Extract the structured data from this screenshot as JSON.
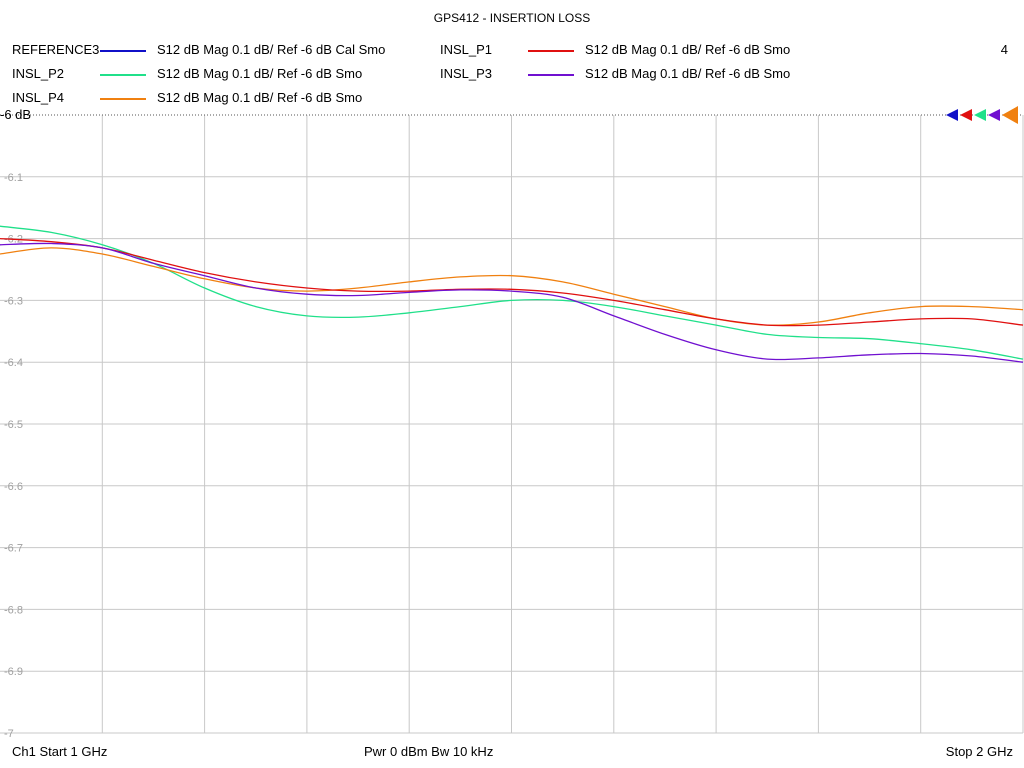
{
  "chart_data": {
    "type": "line",
    "title": "GPS412 - INSERTION LOSS",
    "xlabel": "",
    "ylabel": "",
    "xlim": [
      1,
      2
    ],
    "ylim": [
      -7,
      -6
    ],
    "yticks": [
      -6.1,
      -6.2,
      -6.3,
      -6.4,
      -6.5,
      -6.6,
      -6.7,
      -6.8,
      -6.9,
      -7
    ],
    "ref_level_label": "-6 dB",
    "grid": true,
    "legend_position": "top",
    "series": [
      {
        "name": "REFERENCE3",
        "desc": "S12  dB Mag  0.1 dB/ Ref -6 dB  Cal Smo",
        "color": "#1010c8",
        "x": [],
        "values": []
      },
      {
        "name": "INSL_P2",
        "desc": "S12  dB Mag  0.1 dB/ Ref -6 dB  Smo",
        "color": "#20e08a",
        "x": [
          1.0,
          1.05,
          1.1,
          1.15,
          1.2,
          1.25,
          1.3,
          1.35,
          1.4,
          1.45,
          1.5,
          1.55,
          1.6,
          1.65,
          1.7,
          1.75,
          1.8,
          1.85,
          1.9,
          1.95,
          2.0
        ],
        "values": [
          -6.18,
          -6.19,
          -6.21,
          -6.24,
          -6.28,
          -6.31,
          -6.325,
          -6.327,
          -6.32,
          -6.31,
          -6.3,
          -6.3,
          -6.31,
          -6.325,
          -6.34,
          -6.355,
          -6.36,
          -6.362,
          -6.37,
          -6.38,
          -6.395
        ]
      },
      {
        "name": "INSL_P4",
        "desc": "S12  dB Mag  0.1 dB/ Ref -6 dB  Smo",
        "color": "#f08010",
        "x": [
          1.0,
          1.05,
          1.1,
          1.15,
          1.2,
          1.25,
          1.3,
          1.35,
          1.4,
          1.45,
          1.5,
          1.55,
          1.6,
          1.65,
          1.7,
          1.75,
          1.8,
          1.85,
          1.9,
          1.95,
          2.0
        ],
        "values": [
          -6.225,
          -6.215,
          -6.225,
          -6.245,
          -6.265,
          -6.28,
          -6.285,
          -6.28,
          -6.27,
          -6.262,
          -6.26,
          -6.27,
          -6.29,
          -6.31,
          -6.33,
          -6.34,
          -6.335,
          -6.32,
          -6.31,
          -6.31,
          -6.315
        ]
      },
      {
        "name": "INSL_P1",
        "desc": "S12  dB Mag  0.1 dB/ Ref -6 dB  Smo",
        "color": "#e01010",
        "x": [
          1.0,
          1.05,
          1.1,
          1.15,
          1.2,
          1.25,
          1.3,
          1.35,
          1.4,
          1.45,
          1.5,
          1.55,
          1.6,
          1.65,
          1.7,
          1.75,
          1.8,
          1.85,
          1.9,
          1.95,
          2.0
        ],
        "values": [
          -6.2,
          -6.205,
          -6.215,
          -6.235,
          -6.255,
          -6.27,
          -6.28,
          -6.285,
          -6.285,
          -6.282,
          -6.282,
          -6.288,
          -6.3,
          -6.315,
          -6.33,
          -6.34,
          -6.34,
          -6.335,
          -6.33,
          -6.33,
          -6.34
        ]
      },
      {
        "name": "INSL_P3",
        "desc": "S12  dB Mag  0.1 dB/ Ref -6 dB  Smo",
        "color": "#7010d0",
        "x": [
          1.0,
          1.05,
          1.1,
          1.15,
          1.2,
          1.25,
          1.3,
          1.35,
          1.4,
          1.45,
          1.5,
          1.55,
          1.6,
          1.65,
          1.7,
          1.75,
          1.8,
          1.85,
          1.9,
          1.95,
          2.0
        ],
        "values": [
          -6.21,
          -6.208,
          -6.215,
          -6.24,
          -6.26,
          -6.28,
          -6.29,
          -6.292,
          -6.287,
          -6.283,
          -6.285,
          -6.295,
          -6.325,
          -6.355,
          -6.38,
          -6.395,
          -6.393,
          -6.388,
          -6.386,
          -6.39,
          -6.4
        ]
      }
    ],
    "markers_shown": 4,
    "stimulus": {
      "start": "Ch1  Start  1 GHz",
      "center": "Pwr  0 dBm  Bw  10 kHz",
      "stop": "Stop  2 GHz"
    }
  }
}
